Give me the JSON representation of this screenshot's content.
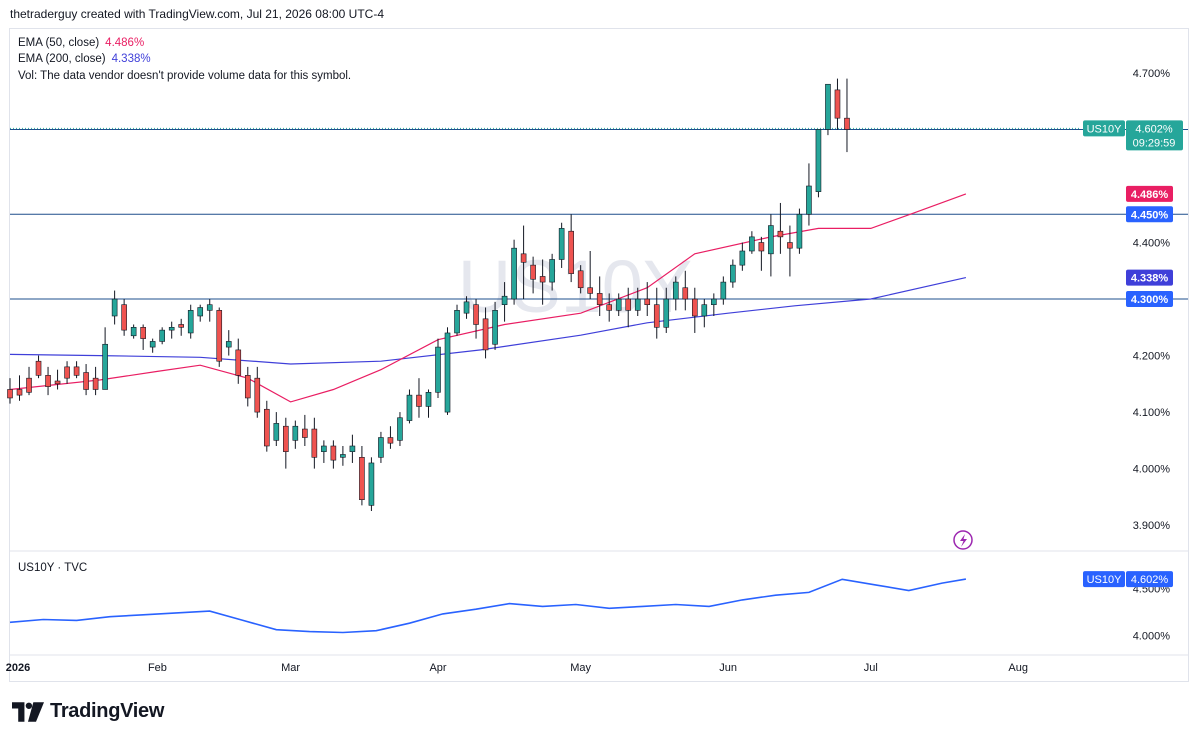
{
  "header": {
    "attribution": "thetraderguy created with TradingView.com, Jul 21, 2026 08:00 UTC-4"
  },
  "legend": {
    "ema50": {
      "label": "EMA (50, close)",
      "value": "4.486%",
      "color": "#e91e63"
    },
    "ema200": {
      "label": "EMA (200, close)",
      "value": "4.338%",
      "color": "#3f3fd9"
    },
    "volume_note": "Vol: The data vendor doesn't provide volume data for this symbol."
  },
  "watermark": "US10Y",
  "subpane": {
    "title": "US10Y · TVC"
  },
  "footer": {
    "brand": "TradingView"
  },
  "colors": {
    "up": "#26a69a",
    "down": "#ef5350",
    "lineBlue": "#2962ff",
    "hline": "#1e4f8c",
    "grid": "#e0e3eb"
  },
  "chart_data": [
    {
      "type": "candlestick",
      "symbol": "US10Y",
      "unit": "%",
      "x_range": [
        "2026-01-01",
        "2026-08-14"
      ],
      "ylim": [
        3.856,
        4.776
      ],
      "yticks": [
        "3.900%",
        "4.000%",
        "4.100%",
        "4.200%",
        "4.400%",
        "4.700%"
      ],
      "xticks": [
        {
          "date": "2026-01-01",
          "label": "2026"
        },
        {
          "date": "2026-02-01",
          "label": "Feb"
        },
        {
          "date": "2026-03-01",
          "label": "Mar"
        },
        {
          "date": "2026-04-01",
          "label": "Apr"
        },
        {
          "date": "2026-05-01",
          "label": "May"
        },
        {
          "date": "2026-06-01",
          "label": "Jun"
        },
        {
          "date": "2026-07-01",
          "label": "Jul"
        },
        {
          "date": "2026-08-01",
          "label": "Aug"
        }
      ],
      "horizontal_lines": [
        {
          "value": 4.6,
          "label": "4.600%"
        },
        {
          "value": 4.45,
          "label": "4.450%"
        },
        {
          "value": 4.3,
          "label": "4.300%"
        }
      ],
      "price_tag": {
        "symbol": "US10Y",
        "value": 4.602,
        "label": "4.602%",
        "countdown": "09:29:59"
      },
      "ema_tags": [
        {
          "value": 4.486,
          "label": "4.486%",
          "color": "#e91e63"
        },
        {
          "value": 4.338,
          "label": "4.338%",
          "color": "#3f3fd9"
        }
      ],
      "ema200": [
        [
          "2026-01-01",
          4.202
        ],
        [
          "2026-01-20",
          4.2
        ],
        [
          "2026-02-10",
          4.197
        ],
        [
          "2026-03-01",
          4.185
        ],
        [
          "2026-03-20",
          4.19
        ],
        [
          "2026-04-10",
          4.21
        ],
        [
          "2026-05-01",
          4.236
        ],
        [
          "2026-05-15",
          4.258
        ],
        [
          "2026-06-01",
          4.275
        ],
        [
          "2026-06-15",
          4.288
        ],
        [
          "2026-07-01",
          4.3
        ],
        [
          "2026-07-21",
          4.338
        ]
      ],
      "ema50": [
        [
          "2026-01-01",
          4.14
        ],
        [
          "2026-01-20",
          4.157
        ],
        [
          "2026-02-01",
          4.172
        ],
        [
          "2026-02-10",
          4.183
        ],
        [
          "2026-02-20",
          4.16
        ],
        [
          "2026-03-01",
          4.118
        ],
        [
          "2026-03-10",
          4.14
        ],
        [
          "2026-03-20",
          4.175
        ],
        [
          "2026-04-01",
          4.228
        ],
        [
          "2026-04-15",
          4.255
        ],
        [
          "2026-05-01",
          4.275
        ],
        [
          "2026-05-15",
          4.32
        ],
        [
          "2026-05-25",
          4.38
        ],
        [
          "2026-06-10",
          4.41
        ],
        [
          "2026-06-20",
          4.425
        ],
        [
          "2026-07-01",
          4.425
        ],
        [
          "2026-07-10",
          4.452
        ],
        [
          "2026-07-21",
          4.486
        ]
      ],
      "candles": [
        [
          "2026-01-01",
          4.14,
          4.16,
          4.125,
          4.115
        ],
        [
          "2026-01-03",
          4.14,
          4.165,
          4.13,
          4.12
        ],
        [
          "2026-01-05",
          4.16,
          4.18,
          4.135,
          4.13
        ],
        [
          "2026-01-07",
          4.19,
          4.2,
          4.165,
          4.16
        ],
        [
          "2026-01-09",
          4.165,
          4.18,
          4.145,
          4.13
        ],
        [
          "2026-01-11",
          4.155,
          4.175,
          4.15,
          4.14
        ],
        [
          "2026-01-13",
          4.18,
          4.19,
          4.16,
          4.15
        ],
        [
          "2026-01-15",
          4.18,
          4.19,
          4.165,
          4.16
        ],
        [
          "2026-01-17",
          4.17,
          4.185,
          4.14,
          4.13
        ],
        [
          "2026-01-19",
          4.16,
          4.18,
          4.14,
          4.13
        ],
        [
          "2026-01-21",
          4.14,
          4.25,
          4.22,
          4.15
        ],
        [
          "2026-01-23",
          4.27,
          4.315,
          4.3,
          4.255
        ],
        [
          "2026-01-25",
          4.29,
          4.3,
          4.245,
          4.235
        ],
        [
          "2026-01-27",
          4.235,
          4.255,
          4.25,
          4.23
        ],
        [
          "2026-01-29",
          4.25,
          4.255,
          4.23,
          4.21
        ],
        [
          "2026-01-31",
          4.215,
          4.23,
          4.225,
          4.205
        ],
        [
          "2026-02-02",
          4.225,
          4.25,
          4.245,
          4.22
        ],
        [
          "2026-02-04",
          4.245,
          4.26,
          4.25,
          4.23
        ],
        [
          "2026-02-06",
          4.255,
          4.265,
          4.25,
          4.235
        ],
        [
          "2026-02-08",
          4.24,
          4.29,
          4.28,
          4.23
        ],
        [
          "2026-02-10",
          4.27,
          4.29,
          4.285,
          4.26
        ],
        [
          "2026-02-12",
          4.28,
          4.3,
          4.29,
          4.26
        ],
        [
          "2026-02-14",
          4.28,
          4.285,
          4.19,
          4.18
        ],
        [
          "2026-02-16",
          4.215,
          4.245,
          4.225,
          4.2
        ],
        [
          "2026-02-18",
          4.21,
          4.23,
          4.165,
          4.15
        ],
        [
          "2026-02-20",
          4.165,
          4.18,
          4.125,
          4.11
        ],
        [
          "2026-02-22",
          4.16,
          4.18,
          4.1,
          4.09
        ],
        [
          "2026-02-24",
          4.105,
          4.12,
          4.04,
          4.03
        ],
        [
          "2026-02-26",
          4.05,
          4.1,
          4.08,
          4.04
        ],
        [
          "2026-02-28",
          4.075,
          4.09,
          4.03,
          4.0
        ],
        [
          "2026-03-02",
          4.05,
          4.085,
          4.075,
          4.035
        ],
        [
          "2026-03-04",
          4.07,
          4.095,
          4.055,
          4.04
        ],
        [
          "2026-03-06",
          4.07,
          4.09,
          4.02,
          4.0
        ],
        [
          "2026-03-08",
          4.03,
          4.05,
          4.04,
          4.01
        ],
        [
          "2026-03-10",
          4.04,
          4.05,
          4.015,
          4.0
        ],
        [
          "2026-03-12",
          4.02,
          4.04,
          4.025,
          4.005
        ],
        [
          "2026-03-14",
          4.03,
          4.06,
          4.04,
          4.01
        ],
        [
          "2026-03-16",
          4.02,
          4.04,
          3.945,
          3.935
        ],
        [
          "2026-03-18",
          3.935,
          4.02,
          4.01,
          3.925
        ],
        [
          "2026-03-20",
          4.02,
          4.065,
          4.055,
          4.01
        ],
        [
          "2026-03-22",
          4.055,
          4.075,
          4.045,
          4.035
        ],
        [
          "2026-03-24",
          4.05,
          4.1,
          4.09,
          4.04
        ],
        [
          "2026-03-26",
          4.085,
          4.14,
          4.13,
          4.08
        ],
        [
          "2026-03-28",
          4.13,
          4.16,
          4.11,
          4.09
        ],
        [
          "2026-03-30",
          4.11,
          4.14,
          4.135,
          4.09
        ],
        [
          "2026-04-01",
          4.135,
          4.23,
          4.215,
          4.125
        ],
        [
          "2026-04-03",
          4.1,
          4.25,
          4.24,
          4.095
        ],
        [
          "2026-04-05",
          4.24,
          4.29,
          4.28,
          4.235
        ],
        [
          "2026-04-07",
          4.275,
          4.305,
          4.295,
          4.265
        ],
        [
          "2026-04-09",
          4.29,
          4.3,
          4.255,
          4.23
        ],
        [
          "2026-04-11",
          4.265,
          4.285,
          4.21,
          4.195
        ],
        [
          "2026-04-13",
          4.22,
          4.295,
          4.28,
          4.21
        ],
        [
          "2026-04-15",
          4.29,
          4.33,
          4.305,
          4.26
        ],
        [
          "2026-04-17",
          4.3,
          4.405,
          4.39,
          4.29
        ],
        [
          "2026-04-19",
          4.38,
          4.43,
          4.365,
          4.3
        ],
        [
          "2026-04-21",
          4.36,
          4.375,
          4.335,
          4.31
        ],
        [
          "2026-04-23",
          4.34,
          4.37,
          4.33,
          4.29
        ],
        [
          "2026-04-25",
          4.33,
          4.38,
          4.37,
          4.315
        ],
        [
          "2026-04-27",
          4.37,
          4.435,
          4.425,
          4.355
        ],
        [
          "2026-04-29",
          4.42,
          4.45,
          4.345,
          4.33
        ],
        [
          "2026-05-01",
          4.35,
          4.36,
          4.32,
          4.31
        ],
        [
          "2026-05-03",
          4.32,
          4.385,
          4.31,
          4.3
        ],
        [
          "2026-05-05",
          4.31,
          4.34,
          4.29,
          4.27
        ],
        [
          "2026-05-07",
          4.29,
          4.31,
          4.28,
          4.26
        ],
        [
          "2026-05-09",
          4.28,
          4.31,
          4.3,
          4.27
        ],
        [
          "2026-05-11",
          4.3,
          4.32,
          4.28,
          4.25
        ],
        [
          "2026-05-13",
          4.28,
          4.32,
          4.3,
          4.27
        ],
        [
          "2026-05-15",
          4.3,
          4.33,
          4.29,
          4.27
        ],
        [
          "2026-05-17",
          4.29,
          4.32,
          4.25,
          4.23
        ],
        [
          "2026-05-19",
          4.25,
          4.32,
          4.3,
          4.24
        ],
        [
          "2026-05-21",
          4.3,
          4.34,
          4.33,
          4.28
        ],
        [
          "2026-05-23",
          4.32,
          4.35,
          4.3,
          4.28
        ],
        [
          "2026-05-25",
          4.3,
          4.32,
          4.27,
          4.24
        ],
        [
          "2026-05-27",
          4.27,
          4.3,
          4.29,
          4.25
        ],
        [
          "2026-05-29",
          4.29,
          4.31,
          4.3,
          4.27
        ],
        [
          "2026-05-31",
          4.3,
          4.34,
          4.33,
          4.29
        ],
        [
          "2026-06-02",
          4.33,
          4.37,
          4.36,
          4.32
        ],
        [
          "2026-06-04",
          4.36,
          4.4,
          4.385,
          4.35
        ],
        [
          "2026-06-06",
          4.385,
          4.42,
          4.41,
          4.38
        ],
        [
          "2026-06-08",
          4.4,
          4.41,
          4.385,
          4.35
        ],
        [
          "2026-06-10",
          4.38,
          4.45,
          4.43,
          4.34
        ],
        [
          "2026-06-12",
          4.42,
          4.47,
          4.41,
          4.38
        ],
        [
          "2026-06-14",
          4.4,
          4.43,
          4.39,
          4.34
        ],
        [
          "2026-06-16",
          4.39,
          4.46,
          4.45,
          4.38
        ],
        [
          "2026-06-18",
          4.45,
          4.54,
          4.5,
          4.43
        ],
        [
          "2026-06-20",
          4.49,
          4.59,
          4.6,
          4.48
        ],
        [
          "2026-06-22",
          4.6,
          4.65,
          4.68,
          4.59
        ],
        [
          "2026-06-24",
          4.67,
          4.69,
          4.62,
          4.6
        ],
        [
          "2026-06-26",
          4.62,
          4.69,
          4.6,
          4.56
        ]
      ]
    },
    {
      "type": "line",
      "name": "US10Y · TVC",
      "unit": "%",
      "ylim": [
        3.8,
        4.85
      ],
      "yticks": [
        "4.500%",
        "4.000%"
      ],
      "price_tag": {
        "symbol": "US10Y",
        "label": "4.602%"
      },
      "series": [
        [
          "2026-01-01",
          4.14
        ],
        [
          "2026-01-08",
          4.17
        ],
        [
          "2026-01-15",
          4.16
        ],
        [
          "2026-01-22",
          4.2
        ],
        [
          "2026-01-29",
          4.22
        ],
        [
          "2026-02-05",
          4.24
        ],
        [
          "2026-02-12",
          4.26
        ],
        [
          "2026-02-19",
          4.16
        ],
        [
          "2026-02-26",
          4.06
        ],
        [
          "2026-03-05",
          4.04
        ],
        [
          "2026-03-12",
          4.03
        ],
        [
          "2026-03-19",
          4.05
        ],
        [
          "2026-03-26",
          4.13
        ],
        [
          "2026-04-02",
          4.23
        ],
        [
          "2026-04-09",
          4.28
        ],
        [
          "2026-04-16",
          4.34
        ],
        [
          "2026-04-23",
          4.31
        ],
        [
          "2026-04-30",
          4.33
        ],
        [
          "2026-05-07",
          4.29
        ],
        [
          "2026-05-14",
          4.31
        ],
        [
          "2026-05-21",
          4.33
        ],
        [
          "2026-05-28",
          4.31
        ],
        [
          "2026-06-04",
          4.38
        ],
        [
          "2026-06-11",
          4.43
        ],
        [
          "2026-06-18",
          4.46
        ],
        [
          "2026-06-25",
          4.6
        ],
        [
          "2026-07-02",
          4.54
        ],
        [
          "2026-07-09",
          4.48
        ],
        [
          "2026-07-16",
          4.56
        ],
        [
          "2026-07-21",
          4.602
        ]
      ]
    }
  ]
}
